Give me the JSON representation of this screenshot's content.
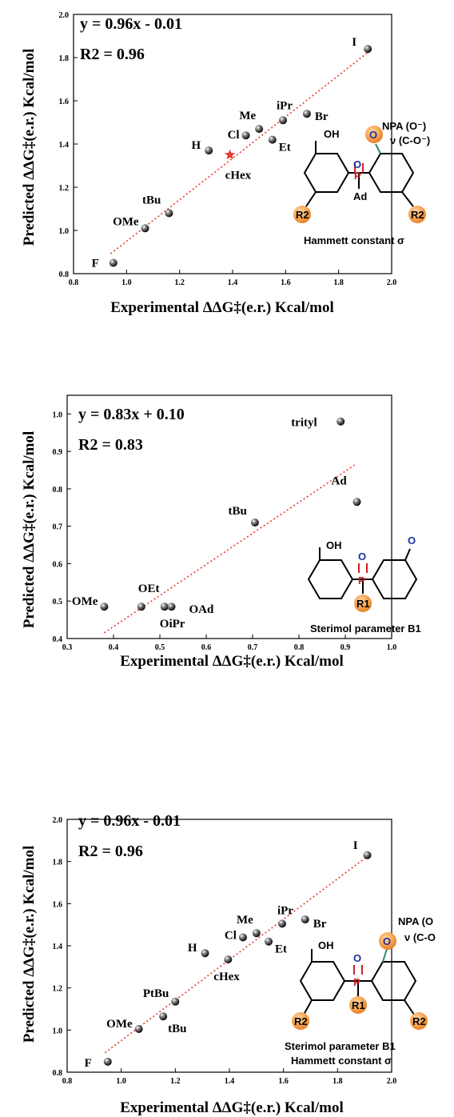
{
  "chart_data": [
    {
      "type": "scatter",
      "xlabel": "Experimental  ΔΔG‡(e.r.) Kcal/mol",
      "ylabel": "Predicted ΔΔG‡(e.r.) Kcal/mol",
      "xlim": [
        0.8,
        2.0
      ],
      "ylim": [
        0.8,
        2.0
      ],
      "x_ticks": [
        "0.8",
        "1.0",
        "1.2",
        "1.4",
        "1.6",
        "1.8",
        "2.0"
      ],
      "y_ticks": [
        "0.8",
        "1.0",
        "1.2",
        "1.4",
        "1.6",
        "1.8",
        "2.0"
      ],
      "equation": "y = 0.96x - 0.01",
      "r2": "R2 = 0.96",
      "fit": {
        "slope": 0.96,
        "intercept": -0.01,
        "x_range": [
          0.94,
          1.91
        ],
        "style": "dotted",
        "color": "#e8372b"
      },
      "points": [
        {
          "label": "F",
          "x": 0.95,
          "y": 0.85
        },
        {
          "label": "OMe",
          "x": 1.07,
          "y": 1.01
        },
        {
          "label": "tBu",
          "x": 1.16,
          "y": 1.08
        },
        {
          "label": "H",
          "x": 1.31,
          "y": 1.37
        },
        {
          "label": "Cl",
          "x": 1.45,
          "y": 1.44
        },
        {
          "label": "Me",
          "x": 1.5,
          "y": 1.47
        },
        {
          "label": "iPr",
          "x": 1.59,
          "y": 1.51
        },
        {
          "label": "Et",
          "x": 1.55,
          "y": 1.42
        },
        {
          "label": "Br",
          "x": 1.68,
          "y": 1.54
        },
        {
          "label": "I",
          "x": 1.91,
          "y": 1.84
        }
      ],
      "highlight": {
        "label": "cHex",
        "x": 1.39,
        "y": 1.35,
        "marker": "star",
        "color": "#e8372b"
      },
      "annotations": [
        "NPA (O⁻)",
        "ν (C-O⁻)",
        "Hammett constant σ"
      ],
      "structure_labels": [
        "OH",
        "O",
        "P",
        "Ad",
        "O",
        "R2",
        "R2"
      ]
    },
    {
      "type": "scatter",
      "xlabel": "Experimental  ΔΔG‡(e.r.) Kcal/mol",
      "ylabel": "Predicted ΔΔG‡(e.r.) Kcal/mol",
      "xlim": [
        0.3,
        1.0
      ],
      "ylim": [
        0.4,
        1.05
      ],
      "x_ticks": [
        "0.3",
        "0.4",
        "0.5",
        "0.6",
        "0.7",
        "0.8",
        "0.9",
        "1.0"
      ],
      "y_ticks": [
        "0.4",
        "0.5",
        "0.6",
        "0.7",
        "0.8",
        "0.9",
        "1.0"
      ],
      "equation": "y = 0.83x + 0.10",
      "r2": "R2 = 0.83",
      "fit": {
        "slope": 0.83,
        "intercept": 0.1,
        "x_range": [
          0.38,
          0.92
        ],
        "style": "dotted",
        "color": "#e8372b"
      },
      "points": [
        {
          "label": "OMe",
          "x": 0.38,
          "y": 0.485
        },
        {
          "label": "OEt",
          "x": 0.46,
          "y": 0.485
        },
        {
          "label": "OiPr",
          "x": 0.51,
          "y": 0.485
        },
        {
          "label": "OAd",
          "x": 0.525,
          "y": 0.485
        },
        {
          "label": "tBu",
          "x": 0.705,
          "y": 0.71
        },
        {
          "label": "Ad",
          "x": 0.925,
          "y": 0.765
        },
        {
          "label": "trityl",
          "x": 0.89,
          "y": 0.98
        }
      ],
      "annotations": [
        "Sterimol parameter B1"
      ],
      "structure_labels": [
        "OH",
        "O",
        "P",
        "R1",
        "O"
      ]
    },
    {
      "type": "scatter",
      "xlabel": "Experimental  ΔΔG‡(e.r.) Kcal/mol",
      "ylabel": "Predicted ΔΔG‡(e.r.) Kcal/mol",
      "xlim": [
        0.8,
        2.0
      ],
      "ylim": [
        0.8,
        2.0
      ],
      "x_ticks": [
        "0.8",
        "1.0",
        "1.2",
        "1.4",
        "1.6",
        "1.8",
        "2.0"
      ],
      "y_ticks": [
        "0.8",
        "1.0",
        "1.2",
        "1.4",
        "1.6",
        "1.8",
        "2.0"
      ],
      "equation": "y = 0.96x - 0.01",
      "r2": "R2 = 0.96",
      "fit": {
        "slope": 0.96,
        "intercept": -0.01,
        "x_range": [
          0.94,
          1.91
        ],
        "style": "dotted",
        "color": "#e8372b"
      },
      "points": [
        {
          "label": "F",
          "x": 0.95,
          "y": 0.85
        },
        {
          "label": "OMe",
          "x": 1.065,
          "y": 1.005
        },
        {
          "label": "tBu",
          "x": 1.155,
          "y": 1.065
        },
        {
          "label": "PtBu",
          "x": 1.2,
          "y": 1.135
        },
        {
          "label": "H",
          "x": 1.31,
          "y": 1.365
        },
        {
          "label": "cHex",
          "x": 1.395,
          "y": 1.335
        },
        {
          "label": "Cl",
          "x": 1.45,
          "y": 1.44
        },
        {
          "label": "Me",
          "x": 1.5,
          "y": 1.46
        },
        {
          "label": "iPr",
          "x": 1.595,
          "y": 1.505
        },
        {
          "label": "Et",
          "x": 1.545,
          "y": 1.42
        },
        {
          "label": "Br",
          "x": 1.68,
          "y": 1.525
        },
        {
          "label": "I",
          "x": 1.91,
          "y": 1.83
        }
      ],
      "annotations": [
        "NPA (O",
        "ν (C-O",
        "Sterimol parameter B1",
        "Hammett constant σ"
      ],
      "structure_labels": [
        "OH",
        "O",
        "P",
        "R1",
        "O",
        "R2",
        "R2"
      ]
    }
  ]
}
